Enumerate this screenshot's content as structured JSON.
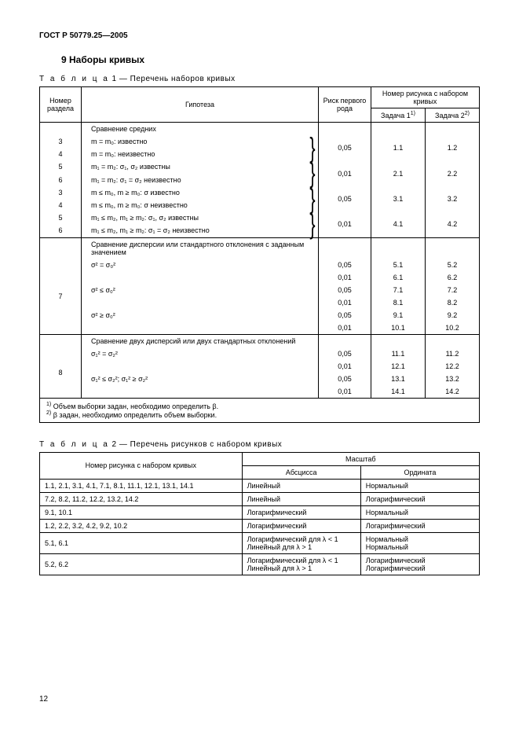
{
  "doc_header": "ГОСТ Р 50779.25—2005",
  "section_title": "9 Наборы кривых",
  "table1": {
    "caption_prefix": "Т а б л и ц а",
    "caption": "  1 — Перечень наборов кривых",
    "headers": {
      "col1": "Номер раздела",
      "col2": "Гипотеза",
      "col3": "Риск первого рода",
      "col4_top": "Номер рисунка с набором кривых",
      "col4a": "Задача 1",
      "col4a_sup": "1)",
      "col4b": "Задача 2",
      "col4b_sup": "2)"
    },
    "group1": {
      "head": "Сравнение средних",
      "r1": {
        "sec": "3",
        "hyp": "m = m₀: известно"
      },
      "r2": {
        "sec": "4",
        "hyp": "m = m₀: неизвестно",
        "risk": "0,05",
        "f1": "1.1",
        "f2": "1.2"
      },
      "r3": {
        "sec": "5",
        "hyp": "m₁ = m₂: σ₁, σ₂ известны"
      },
      "r4": {
        "sec": "6",
        "hyp": "m₁ = m₂: σ₁ = σ₂ неизвестно",
        "risk": "0,01",
        "f1": "2.1",
        "f2": "2.2"
      },
      "r5": {
        "sec": "3",
        "hyp": "m ≤ m₀, m ≥ m₀: σ известно"
      },
      "r6": {
        "sec": "4",
        "hyp": "m ≤ m₀, m ≥ m₀: σ неизвестно",
        "risk": "0,05",
        "f1": "3.1",
        "f2": "3.2"
      },
      "r7": {
        "sec": "5",
        "hyp": "m₁ ≤ m₂, m₁ ≥ m₂: σ₁, σ₂ известны"
      },
      "r8": {
        "sec": "6",
        "hyp": "m₁ ≤ m₂, m₁ ≥ m₂: σ₁ = σ₂ неизвестно",
        "risk": "0,01",
        "f1": "4.1",
        "f2": "4.2"
      }
    },
    "group2": {
      "head": "Сравнение дисперсии или стандартного отклонения с заданным значением",
      "sec": "7",
      "r1": {
        "hyp": "σ² = σ₀²",
        "risk": "0,05",
        "f1": "5.1",
        "f2": "5.2"
      },
      "r2": {
        "risk": "0,01",
        "f1": "6.1",
        "f2": "6.2"
      },
      "r3": {
        "hyp": "σ² ≤ σ₀²",
        "risk": "0,05",
        "f1": "7.1",
        "f2": "7.2"
      },
      "r4": {
        "risk": "0,01",
        "f1": "8.1",
        "f2": "8.2"
      },
      "r5": {
        "hyp": "σ² ≥ σ₀²",
        "risk": "0,05",
        "f1": "9.1",
        "f2": "9.2"
      },
      "r6": {
        "risk": "0,01",
        "f1": "10.1",
        "f2": "10.2"
      }
    },
    "group3": {
      "head": "Сравнение двух дисперсий или двух стандартных отклонений",
      "sec": "8",
      "r1": {
        "hyp": "σ₁² = σ₂²",
        "risk": "0,05",
        "f1": "11.1",
        "f2": "11.2"
      },
      "r2": {
        "risk": "0,01",
        "f1": "12.1",
        "f2": "12.2"
      },
      "r3": {
        "hyp": "σ₁² ≤ σ₂²; σ₁² ≥ σ₂²",
        "risk": "0,05",
        "f1": "13.1",
        "f2": "13.2"
      },
      "r4": {
        "risk": "0,01",
        "f1": "14.1",
        "f2": "14.2"
      }
    },
    "footnote1_sup": "1)",
    "footnote1": " Объем выборки задан, необходимо определить β.",
    "footnote2_sup": "2)",
    "footnote2": " β задан, необходимо определить объем выборки."
  },
  "table2": {
    "caption_prefix": "Т а б л и ц а",
    "caption": "  2 — Перечень рисунков с набором кривых",
    "headers": {
      "col1": "Номер рисунка с набором кривых",
      "col2_top": "Масштаб",
      "col2a": "Абсцисса",
      "col2b": "Ордината"
    },
    "rows": [
      {
        "n": "1.1, 2.1, 3.1, 4.1, 7.1, 8.1, 11.1, 12.1, 13.1, 14.1",
        "a": "Линейный",
        "o": "Нормальный"
      },
      {
        "n": "7.2, 8.2, 11.2, 12.2, 13.2, 14.2",
        "a": "Линейный",
        "o": "Логарифмический"
      },
      {
        "n": "9.1, 10.1",
        "a": "Логарифмический",
        "o": "Нормальный"
      },
      {
        "n": "1.2, 2.2, 3.2, 4.2, 9.2, 10.2",
        "a": "Логарифмический",
        "o": "Логарифмический"
      },
      {
        "n": "5.1, 6.1",
        "a": "Логарифмический для λ < 1\nЛинейный для λ  > 1",
        "o": "Нормальный\nНормальный"
      },
      {
        "n": "5.2, 6.2",
        "a": "Логарифмический для λ < 1\nЛинейный для λ  > 1",
        "o": "Логарифмический\nЛогарифмический"
      }
    ]
  },
  "page_number": "12"
}
